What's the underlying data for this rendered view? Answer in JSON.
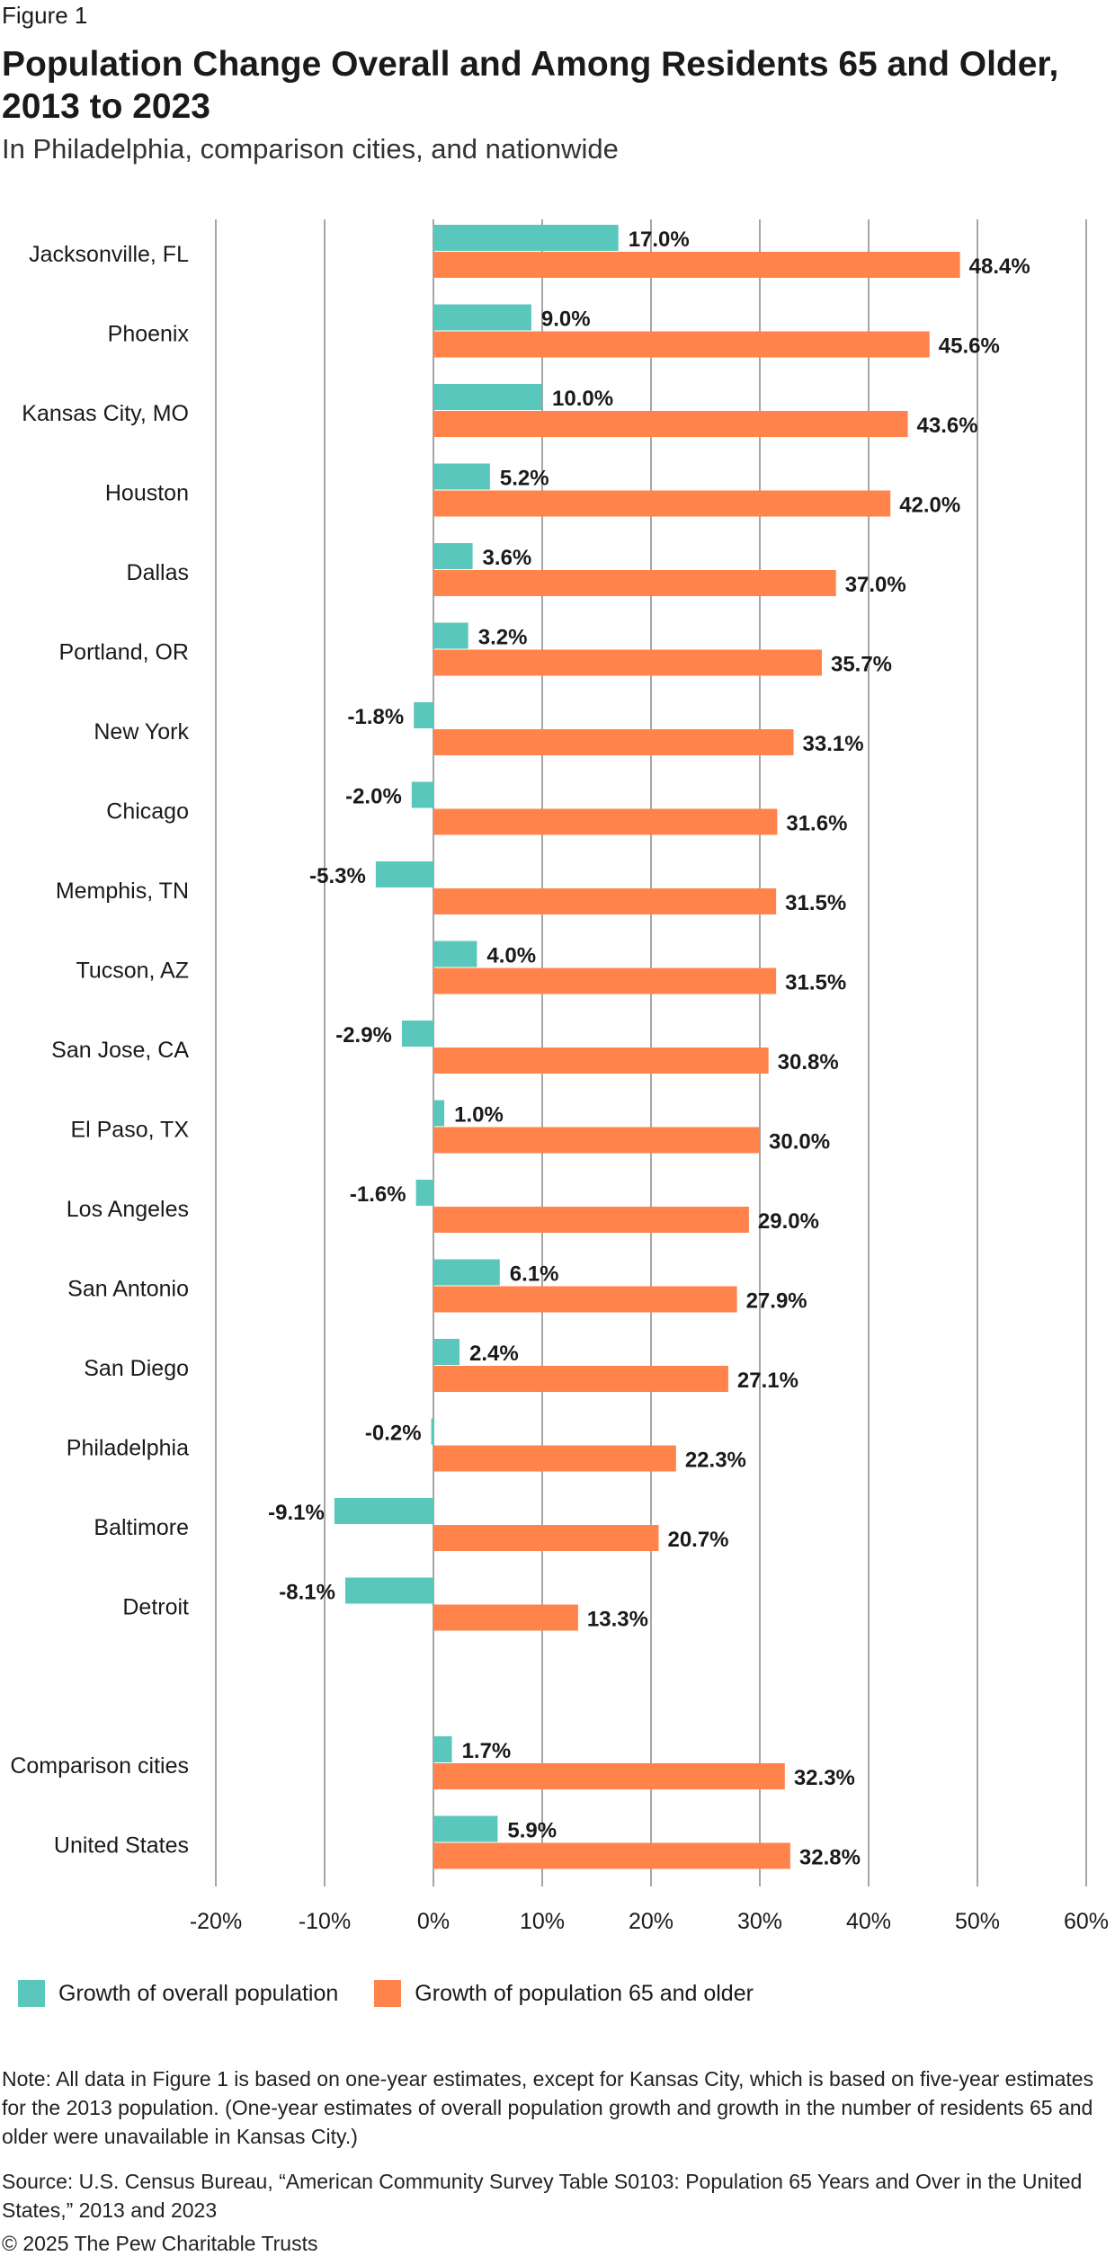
{
  "figure_label": "Figure 1",
  "colors": {
    "overall": "#5ac7bd",
    "older": "#ff834a",
    "grid": "#a6a6a6"
  },
  "legend": {
    "overall": "Growth of overall population",
    "older": "Growth of population 65 and older"
  },
  "note": "Note: All data in Figure 1 is based on one-year estimates, except for Kansas City, which is based on five-year estimates for the 2013 population. (One-year estimates of overall population growth and growth in the number of residents 65 and older were unavailable in Kansas City.)",
  "source": "Source: U.S. Census Bureau, “American Community Survey Table S0103: Population 65 Years and Over in the United States,” 2013 and 2023",
  "copyright": "© 2025 The Pew Charitable Trusts",
  "chart_data": {
    "type": "bar",
    "orientation": "horizontal",
    "title": "Population Change Overall and Among Residents 65 and Older, 2013 to 2023",
    "subtitle": "In Philadelphia, comparison cities, and nationwide",
    "categories": [
      "Jacksonville, FL",
      "Phoenix",
      "Kansas City, MO",
      "Houston",
      "Dallas",
      "Portland, OR",
      "New York",
      "Chicago",
      "Memphis, TN",
      "Tucson, AZ",
      "San Jose, CA",
      "El Paso, TX",
      "Los Angeles",
      "San Antonio",
      "San Diego",
      "Philadelphia",
      "Baltimore",
      "Detroit",
      "Comparison cities",
      "United States"
    ],
    "series": [
      {
        "name": "Growth of overall population",
        "values": [
          17.0,
          9.0,
          10.0,
          5.2,
          3.6,
          3.2,
          -1.8,
          -2.0,
          -5.3,
          4.0,
          -2.9,
          1.0,
          -1.6,
          6.1,
          2.4,
          -0.2,
          -9.1,
          -8.1,
          1.7,
          5.9
        ],
        "labels": [
          "17.0%",
          "9.0%",
          "10.0%",
          "5.2%",
          "3.6%",
          "3.2%",
          "-1.8%",
          "-2.0%",
          "-5.3%",
          "4.0%",
          "-2.9%",
          "1.0%",
          "-1.6%",
          "6.1%",
          "2.4%",
          "-0.2%",
          "-9.1%",
          "-8.1%",
          "1.7%",
          "5.9%"
        ]
      },
      {
        "name": "Growth of population 65 and older",
        "values": [
          48.4,
          45.6,
          43.6,
          42.0,
          37.0,
          35.7,
          33.1,
          31.6,
          31.5,
          31.5,
          30.8,
          30.0,
          29.0,
          27.9,
          27.1,
          22.3,
          20.7,
          13.3,
          32.3,
          32.8
        ],
        "labels": [
          "48.4%",
          "45.6%",
          "43.6%",
          "42.0%",
          "37.0%",
          "35.7%",
          "33.1%",
          "31.6%",
          "31.5%",
          "31.5%",
          "30.8%",
          "30.0%",
          "29.0%",
          "27.9%",
          "27.1%",
          "22.3%",
          "20.7%",
          "13.3%",
          "32.3%",
          "32.8%"
        ]
      }
    ],
    "groups": [
      18,
      2
    ],
    "xlim": [
      -20,
      60
    ],
    "xticks": [
      -20,
      -10,
      0,
      10,
      20,
      30,
      40,
      50,
      60
    ],
    "xtick_labels": [
      "-20%",
      "-10%",
      "0%",
      "10%",
      "20%",
      "30%",
      "40%",
      "50%",
      "60%"
    ],
    "grid": true,
    "legend_position": "bottom"
  }
}
